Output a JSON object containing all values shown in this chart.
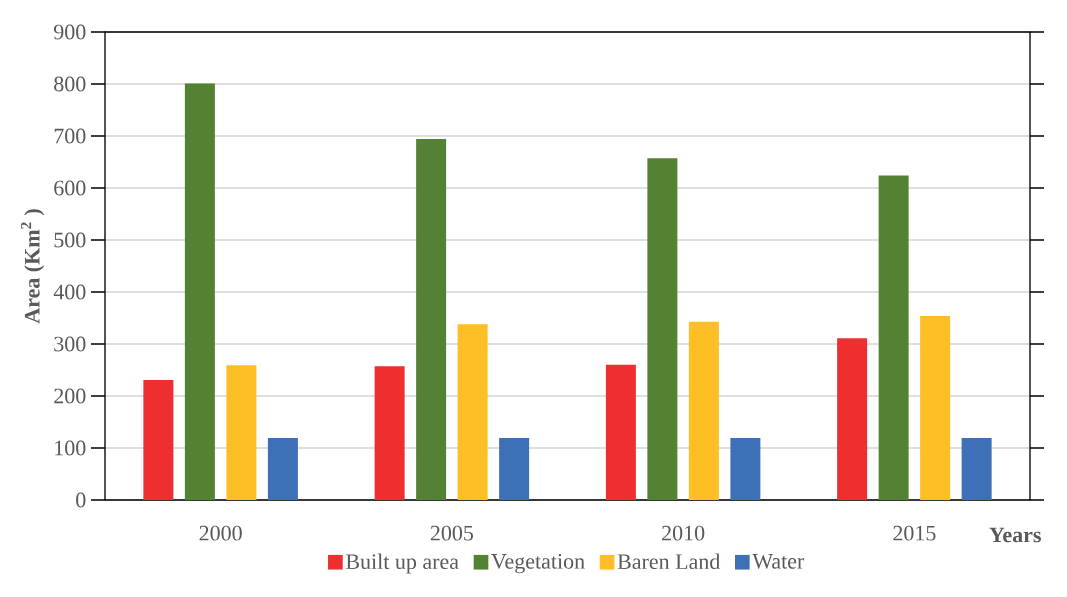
{
  "chart_data": {
    "type": "bar",
    "categories": [
      "2000",
      "2005",
      "2010",
      "2015"
    ],
    "series": [
      {
        "name": "Built up area",
        "color": "#ee2e2f",
        "values": [
          231,
          257,
          260,
          311
        ]
      },
      {
        "name": "Vegetation",
        "color": "#548235",
        "values": [
          801,
          694,
          657,
          624
        ]
      },
      {
        "name": "Baren Land",
        "color": "#fdbe26",
        "values": [
          259,
          338,
          343,
          354
        ]
      },
      {
        "name": "Water",
        "color": "#3e70b8",
        "values": [
          119,
          119,
          119,
          119
        ]
      }
    ],
    "xlabel": "Years",
    "ylabel": "Area (Km$^{2}$ )",
    "ylim": [
      0,
      900
    ],
    "yticks": [
      0,
      100,
      200,
      300,
      400,
      500,
      600,
      700,
      800,
      900
    ],
    "grid": "y",
    "legend": "bottom"
  }
}
